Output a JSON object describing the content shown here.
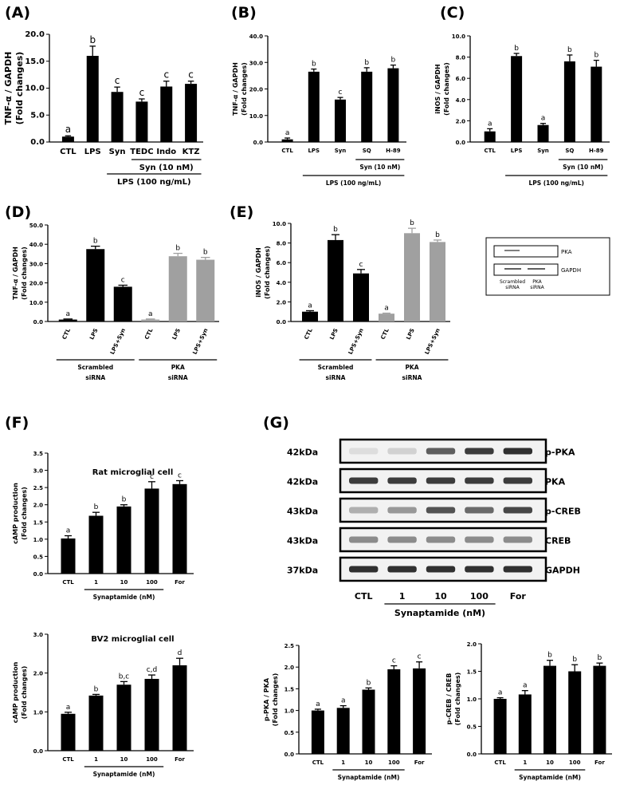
{
  "panel_labels": [
    "(A)",
    "(B)",
    "(C)",
    "(D)",
    "(E)",
    "(F)",
    "(G)"
  ],
  "chart_data": [
    {
      "id": "A",
      "type": "bar",
      "ylabel": "TNF-α / GAPDH",
      "ylabel2": "(Fold changes)",
      "categories": [
        "CTL",
        "LPS",
        "Syn",
        "TEDC",
        "Indo",
        "KTZ"
      ],
      "values": [
        1.0,
        16.0,
        9.3,
        7.5,
        10.3,
        10.8
      ],
      "errors": [
        0.15,
        1.8,
        0.9,
        0.5,
        1.0,
        0.5
      ],
      "letters": [
        "a",
        "b",
        "c",
        "c",
        "c",
        "c"
      ],
      "ylim": [
        0,
        20
      ],
      "yticks": [
        "0.0",
        "5.0",
        "10.0",
        "15.0",
        "20.0"
      ],
      "groups": [
        {
          "label": "Syn (10 nM)",
          "from": 3,
          "to": 5
        },
        {
          "label": "LPS (100 ng/mL)",
          "from": 2,
          "to": 5
        }
      ]
    },
    {
      "id": "B",
      "type": "bar",
      "ylabel": "TNF-α / GAPDH",
      "ylabel2": "(Fold changes)",
      "categories": [
        "CTL",
        "LPS",
        "Syn",
        "SQ",
        "H-89"
      ],
      "values": [
        1.0,
        26.5,
        16.0,
        26.5,
        27.8
      ],
      "errors": [
        0.5,
        1.0,
        0.8,
        1.5,
        1.2
      ],
      "letters": [
        "a",
        "b",
        "c",
        "b",
        "b"
      ],
      "ylim": [
        0,
        40
      ],
      "yticks": [
        "0.0",
        "10.0",
        "20.0",
        "30.0",
        "40.0"
      ],
      "groups": [
        {
          "label": "Syn (10 nM)",
          "from": 3,
          "to": 4
        },
        {
          "label": "LPS (100 ng/mL)",
          "from": 1,
          "to": 4
        }
      ]
    },
    {
      "id": "C",
      "type": "bar",
      "ylabel": "iNOS / GAPDH",
      "ylabel2": "(Fold changes)",
      "categories": [
        "CTL",
        "LPS",
        "Syn",
        "SQ",
        "H-89"
      ],
      "values": [
        1.0,
        8.1,
        1.6,
        7.6,
        7.1
      ],
      "errors": [
        0.25,
        0.25,
        0.15,
        0.6,
        0.6
      ],
      "letters": [
        "a",
        "b",
        "a",
        "b",
        "b"
      ],
      "ylim": [
        0,
        10
      ],
      "yticks": [
        "0.0",
        "2.0",
        "4.0",
        "6.0",
        "8.0",
        "10.0"
      ],
      "groups": [
        {
          "label": "Syn (10 nM)",
          "from": 3,
          "to": 4
        },
        {
          "label": "LPS (100 ng/mL)",
          "from": 1,
          "to": 4
        }
      ]
    },
    {
      "id": "D",
      "type": "bar",
      "ylabel": "TNF-α / GAPDH",
      "ylabel2": "(Fold changes)",
      "categories": [
        "CTL",
        "LPS",
        "LPS+Syn",
        "CTL",
        "LPS",
        "LPS+Syn"
      ],
      "values": [
        1.0,
        37.5,
        18.0,
        1.0,
        33.8,
        32.0
      ],
      "errors": [
        0.3,
        1.5,
        0.8,
        0.3,
        1.5,
        1.2
      ],
      "letters": [
        "a",
        "b",
        "c",
        "a",
        "b",
        "b"
      ],
      "colors": [
        "#000000",
        "#000000",
        "#000000",
        "#a0a0a0",
        "#a0a0a0",
        "#a0a0a0"
      ],
      "ylim": [
        0,
        50
      ],
      "yticks": [
        "0.0",
        "10.0",
        "20.0",
        "30.0",
        "40.0",
        "50.0"
      ],
      "groups": [
        {
          "label": "Scrambled",
          "label2": "siRNA",
          "from": 0,
          "to": 2
        },
        {
          "label": "PKA",
          "label2": "siRNA",
          "from": 3,
          "to": 5
        }
      ]
    },
    {
      "id": "E",
      "type": "bar",
      "ylabel": "iNOS / GAPDH",
      "ylabel2": "(Fold changes)",
      "categories": [
        "CTL",
        "LPS",
        "LPS+Syn",
        "CTL",
        "LPS",
        "LPS+Syn"
      ],
      "values": [
        1.0,
        8.3,
        4.9,
        0.8,
        9.0,
        8.1
      ],
      "errors": [
        0.1,
        0.55,
        0.4,
        0.05,
        0.5,
        0.2
      ],
      "letters": [
        "a",
        "b",
        "c",
        "a",
        "b",
        "b"
      ],
      "colors": [
        "#000000",
        "#000000",
        "#000000",
        "#a0a0a0",
        "#a0a0a0",
        "#a0a0a0"
      ],
      "ylim": [
        0,
        10
      ],
      "yticks": [
        "0.0",
        "2.0",
        "4.0",
        "6.0",
        "8.0",
        "10.0"
      ],
      "groups": [
        {
          "label": "Scrambled",
          "label2": "siRNA",
          "from": 0,
          "to": 2
        },
        {
          "label": "PKA",
          "label2": "siRNA",
          "from": 3,
          "to": 5
        }
      ]
    },
    {
      "id": "F1",
      "type": "bar",
      "title": "Rat microglial cell",
      "ylabel": "cAMP production",
      "ylabel2": "(Fold changes)",
      "categories": [
        "CTL",
        "1",
        "10",
        "100",
        "For"
      ],
      "values": [
        1.02,
        1.68,
        1.95,
        2.47,
        2.6
      ],
      "errors": [
        0.08,
        0.1,
        0.05,
        0.2,
        0.1
      ],
      "letters": [
        "a",
        "b",
        "b",
        "c",
        "c"
      ],
      "ylim": [
        0,
        3.5
      ],
      "yticks": [
        "0.0",
        "0.5",
        "1.0",
        "1.5",
        "2.0",
        "2.5",
        "3.0",
        "3.5"
      ],
      "groups": [
        {
          "label": "Synaptamide (nM)",
          "from": 1,
          "to": 3
        }
      ]
    },
    {
      "id": "F2",
      "type": "bar",
      "title": "BV2 microglial cell",
      "ylabel": "cAMP production",
      "ylabel2": "(Fold changes)",
      "categories": [
        "CTL",
        "1",
        "10",
        "100",
        "For"
      ],
      "values": [
        0.95,
        1.42,
        1.7,
        1.85,
        2.2
      ],
      "errors": [
        0.04,
        0.03,
        0.08,
        0.1,
        0.18
      ],
      "letters": [
        "a",
        "b",
        "b,c",
        "c,d",
        "d"
      ],
      "ylim": [
        0,
        3.0
      ],
      "yticks": [
        "0.0",
        "1.0",
        "2.0",
        "3.0"
      ],
      "groups": [
        {
          "label": "Synaptamide (nM)",
          "from": 1,
          "to": 3
        }
      ]
    },
    {
      "id": "G1",
      "type": "bar",
      "ylabel": "p-PKA / PKA",
      "ylabel2": "(Fold changes)",
      "categories": [
        "CTL",
        "1",
        "10",
        "100",
        "For"
      ],
      "values": [
        1.0,
        1.06,
        1.48,
        1.95,
        1.97
      ],
      "errors": [
        0.03,
        0.05,
        0.04,
        0.08,
        0.15
      ],
      "letters": [
        "a",
        "a",
        "b",
        "c",
        "c"
      ],
      "ylim": [
        0,
        2.5
      ],
      "yticks": [
        "0.0",
        "0.5",
        "1.0",
        "1.5",
        "2.0",
        "2.5"
      ],
      "groups": [
        {
          "label": "Synaptamide (nM)",
          "from": 1,
          "to": 3
        }
      ]
    },
    {
      "id": "G2",
      "type": "bar",
      "ylabel": "p-CREB / CREB",
      "ylabel2": "(Fold changes)",
      "categories": [
        "CTL",
        "1",
        "10",
        "100",
        "For"
      ],
      "values": [
        1.0,
        1.08,
        1.6,
        1.5,
        1.6
      ],
      "errors": [
        0.02,
        0.07,
        0.1,
        0.12,
        0.05
      ],
      "letters": [
        "a",
        "a",
        "b",
        "b",
        "b"
      ],
      "ylim": [
        0,
        2.0
      ],
      "yticks": [
        "0.0",
        "0.5",
        "1.0",
        "1.5",
        "2.0"
      ],
      "groups": [
        {
          "label": "Synaptamide (nM)",
          "from": 1,
          "to": 3
        }
      ]
    }
  ],
  "blot_inset": {
    "bands": [
      "PKA",
      "GAPDH"
    ],
    "lanes": [
      "Scrambled",
      "PKA"
    ],
    "lanes_sub": [
      "siRNA",
      "siRNA"
    ]
  },
  "blot_g": {
    "rows": [
      {
        "kda": "42kDa",
        "label": "p-PKA",
        "intensity": [
          0.15,
          0.2,
          0.7,
          0.85,
          0.9
        ]
      },
      {
        "kda": "42kDa",
        "label": "PKA",
        "intensity": [
          0.85,
          0.85,
          0.85,
          0.85,
          0.85
        ]
      },
      {
        "kda": "43kDa",
        "label": "p-CREB",
        "intensity": [
          0.35,
          0.45,
          0.75,
          0.65,
          0.8
        ]
      },
      {
        "kda": "43kDa",
        "label": "CREB",
        "intensity": [
          0.5,
          0.5,
          0.5,
          0.5,
          0.5
        ]
      },
      {
        "kda": "37kDa",
        "label": "GAPDH",
        "intensity": [
          0.9,
          0.9,
          0.9,
          0.9,
          0.9
        ]
      }
    ],
    "lanes": [
      "CTL",
      "1",
      "10",
      "100",
      "For"
    ],
    "group_label": "Synaptamide (nM)"
  }
}
